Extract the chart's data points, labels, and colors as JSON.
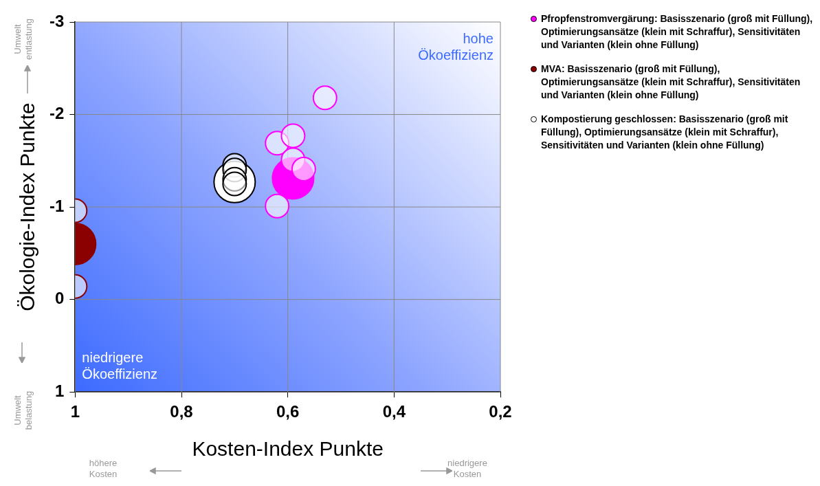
{
  "chart_data": {
    "type": "bubble",
    "xlabel": "Kosten-Index Punkte",
    "ylabel": "Ökologie-Index Punkte",
    "xlim": [
      1,
      0.2
    ],
    "xticks": [
      {
        "value": 1,
        "label": "1"
      },
      {
        "value": 0.8,
        "label": "0,8"
      },
      {
        "value": 0.6,
        "label": "0,6"
      },
      {
        "value": 0.4,
        "label": "0,4"
      },
      {
        "value": 0.2,
        "label": "0,2"
      }
    ],
    "ylim": [
      1,
      -3
    ],
    "yticks": [
      -3,
      -2,
      -1,
      0,
      1
    ],
    "grid": true,
    "legend": "right",
    "marker": "circle",
    "series": [
      {
        "name": "Pfropfenstromvergärung: Basisszenario (groß mit Füllung), Optimierungsansätze (klein mit Schraffur), Sensitivitäten und Varianten (klein ohne Füllung)",
        "color": "#ff00ff",
        "x": [
          0.59,
          0.62,
          0.59,
          0.59,
          0.57,
          0.53,
          0.62
        ],
        "values": [
          -1.31,
          -1.69,
          -1.77,
          -1.51,
          -1.41,
          -2.18,
          -1.01
        ],
        "sizes": [
          1,
          0.32,
          0.32,
          0.32,
          0.32,
          0.32,
          0.32
        ]
      },
      {
        "name": "MVA: Basisszenario (groß mit Füllung), Optimierungsansätze (klein mit Schraffur), Sensitivitäten und Varianten (klein ohne Füllung)",
        "color": "#8b0000",
        "x": [
          1,
          1,
          1
        ],
        "values": [
          -0.6,
          -0.96,
          -0.14
        ],
        "sizes": [
          1,
          0.32,
          0.32
        ]
      },
      {
        "name": "Kompostierung geschlossen: Basisszenario (groß mit Füllung), Optimierungsansätze (klein mit Schraffur), Sensitivitäten und Varianten (klein ohne Füllung)",
        "color": "#ffffff",
        "x": [
          0.7,
          0.7,
          0.7,
          0.7,
          0.7
        ],
        "values": [
          -1.27,
          -1.45,
          -1.4,
          -1.3,
          -1.25
        ],
        "sizes": [
          1,
          0.32,
          0.32,
          0.32,
          0.32
        ]
      }
    ],
    "annotations": [
      "hohe Ökoeffizienz",
      "niedrigere Ökoeffizienz",
      "Umwelt entlastung",
      "Umwelt belastung",
      "höhere Kosten",
      "niedrigere Kosten"
    ]
  }
}
